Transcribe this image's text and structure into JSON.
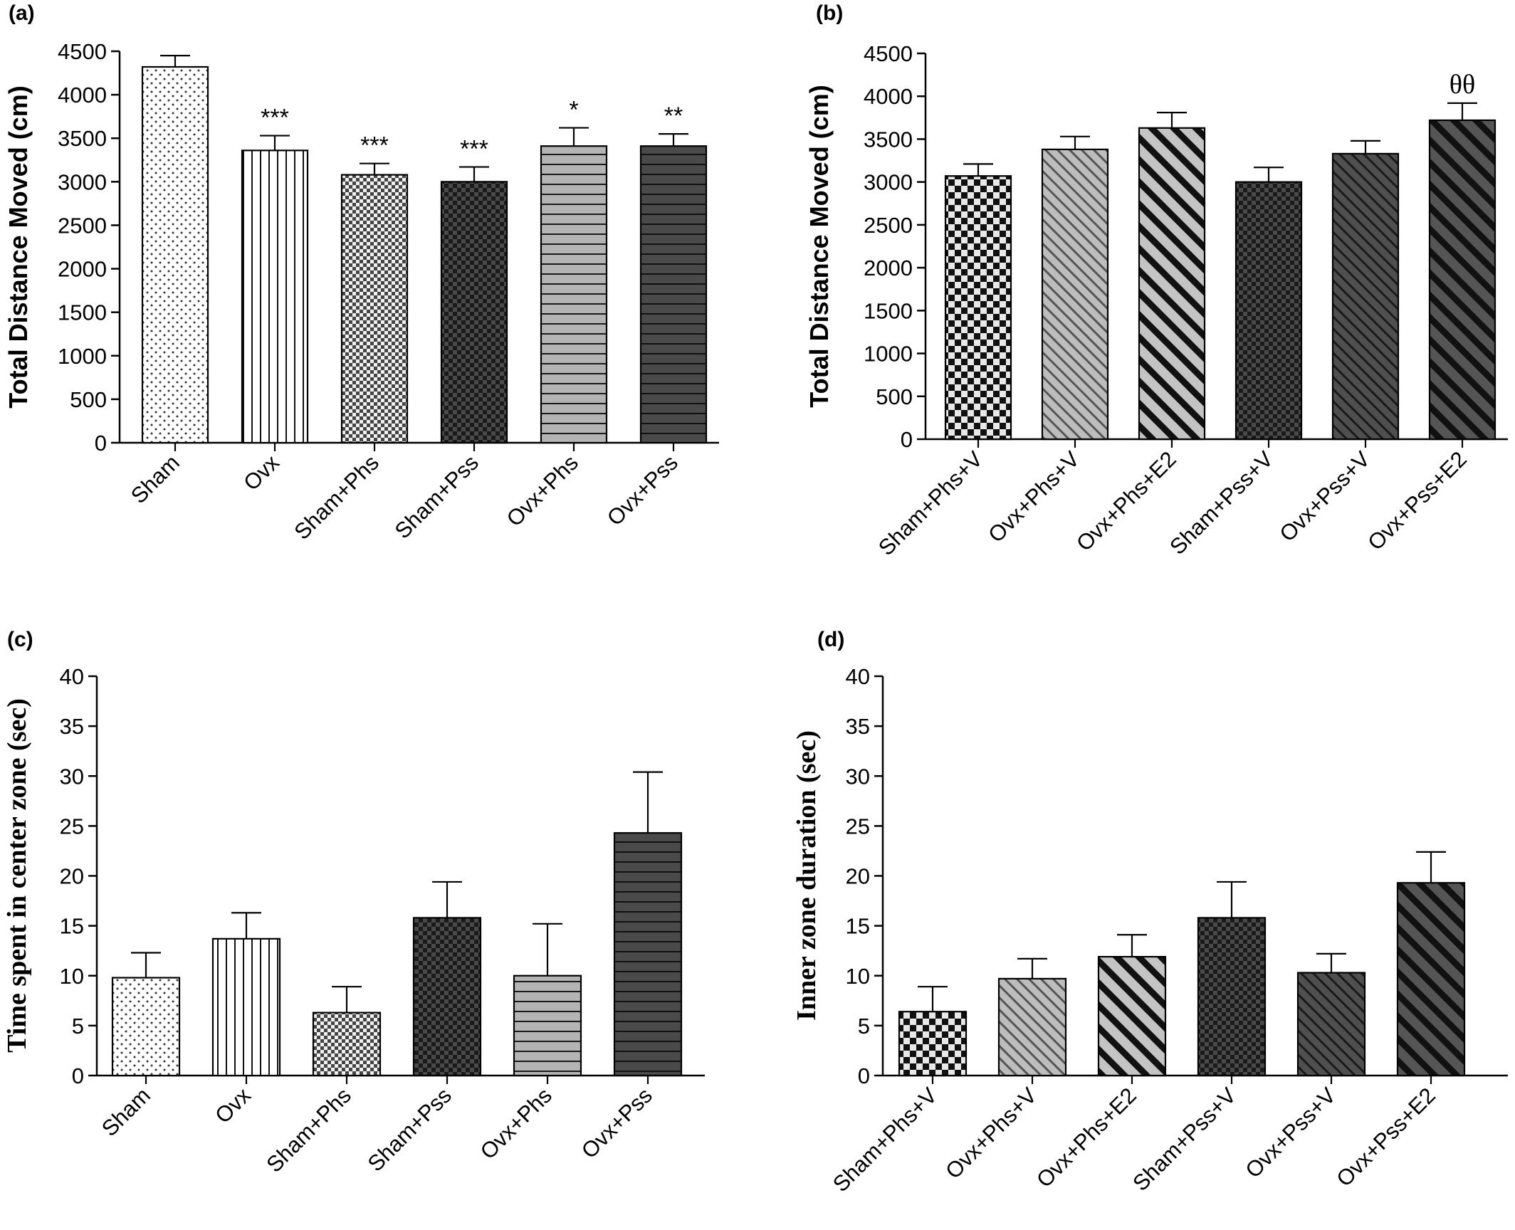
{
  "chart_data": [
    {
      "panel": "(a)",
      "type": "bar",
      "ylabel": "Total Distance Moved (cm)",
      "ylim": [
        0,
        4500
      ],
      "yticks": [
        0,
        500,
        1000,
        1500,
        2000,
        2500,
        3000,
        3500,
        4000,
        4500
      ],
      "categories": [
        "Sham",
        "Ovx",
        "Sham+Phs",
        "Sham+Pss",
        "Ovx+Phs",
        "Ovx+Pss"
      ],
      "values": [
        4320,
        3360,
        3080,
        3000,
        3410,
        3410
      ],
      "errors": [
        130,
        170,
        130,
        170,
        210,
        140
      ],
      "annotations": [
        "",
        "***",
        "***",
        "***",
        "*",
        "**"
      ],
      "patterns": [
        "dots",
        "vlines",
        "check-fine",
        "check-dark",
        "hlines-light",
        "hlines-dark"
      ]
    },
    {
      "panel": "(b)",
      "type": "bar",
      "ylabel": "Total Distance Moved (cm)",
      "ylim": [
        0,
        4500
      ],
      "yticks": [
        0,
        500,
        1000,
        1500,
        2000,
        2500,
        3000,
        3500,
        4000,
        4500
      ],
      "categories": [
        "Sham+Phs+V",
        "Ovx+Phs+V",
        "Ovx+Phs+E2",
        "Sham+Pss+V",
        "Ovx+Pss+V",
        "Ovx+Pss+E2"
      ],
      "values": [
        3070,
        3380,
        3630,
        3000,
        3330,
        3720
      ],
      "errors": [
        140,
        150,
        180,
        170,
        150,
        200
      ],
      "annotations": [
        "",
        "",
        "",
        "",
        "",
        "θθ"
      ],
      "patterns": [
        "check-coarse",
        "diag-thin-light",
        "diag-thick-light",
        "check-dark",
        "diag-thin-dark",
        "diag-thick-dark"
      ]
    },
    {
      "panel": "(c)",
      "type": "bar",
      "ylabel": "Time spent in center zone (sec)",
      "ylim": [
        0,
        40
      ],
      "yticks": [
        0,
        5,
        10,
        15,
        20,
        25,
        30,
        35,
        40
      ],
      "categories": [
        "Sham",
        "Ovx",
        "Sham+Phs",
        "Sham+Pss",
        "Ovx+Phs",
        "Ovx+Pss"
      ],
      "values": [
        9.8,
        13.7,
        6.3,
        15.8,
        10.0,
        24.3
      ],
      "errors": [
        2.5,
        2.6,
        2.6,
        3.6,
        5.2,
        6.1
      ],
      "annotations": [
        "",
        "",
        "",
        "",
        "",
        ""
      ],
      "patterns": [
        "dots",
        "vlines",
        "check-fine",
        "check-dark",
        "hlines-light",
        "hlines-dark"
      ]
    },
    {
      "panel": "(d)",
      "type": "bar",
      "ylabel": "Inner zone duration (sec)",
      "ylim": [
        0,
        40
      ],
      "yticks": [
        0,
        5,
        10,
        15,
        20,
        25,
        30,
        35,
        40
      ],
      "categories": [
        "Sham+Phs+V",
        "Ovx+Phs+V",
        "Ovx+Phs+E2",
        "Sham+Pss+V",
        "Ovx+Pss+V",
        "Ovx+Pss+E2"
      ],
      "values": [
        6.4,
        9.7,
        11.9,
        15.8,
        10.3,
        19.3
      ],
      "errors": [
        2.5,
        2.0,
        2.2,
        3.6,
        1.9,
        3.1
      ],
      "annotations": [
        "",
        "",
        "",
        "",
        "",
        ""
      ],
      "patterns": [
        "check-coarse",
        "diag-thin-light",
        "diag-thick-light",
        "check-dark",
        "diag-thin-dark",
        "diag-thick-dark"
      ]
    }
  ]
}
